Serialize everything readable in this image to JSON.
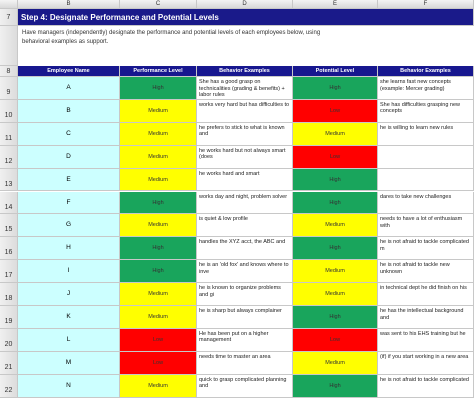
{
  "sheet": {
    "column_letters": [
      "B",
      "C",
      "D",
      "E",
      "F"
    ],
    "title_row": "7",
    "title": "Step 4:  Designate Performance and Potential Levels",
    "instructions": "Have managers (independently) designate the performance and potential levels of each employees below, using behavioral examples as support.",
    "header_row": "8",
    "headers": [
      "Employee Name",
      "Performance Level",
      "Behavior Examples",
      "Potential Level",
      "Behavior Examples"
    ],
    "rows": [
      {
        "row": "9",
        "name": "A",
        "performance": "High",
        "performance_color": "#19a55c",
        "performance_example": "She has a good grasp on technicalities (grading & benefits) + labor rules",
        "potential": "High",
        "potential_color": "#19a55c",
        "potential_example": "she learns fast new concepts (example: Mercer grading)"
      },
      {
        "row": "10",
        "name": "B",
        "performance": "Medium",
        "performance_color": "#ffff00",
        "performance_example": "works very hard but has difficulties to",
        "potential": "Low",
        "potential_color": "#ff0000",
        "potential_example": "She has difficulties grasping new concepts"
      },
      {
        "row": "11",
        "name": "C",
        "performance": "Medium",
        "performance_color": "#ffff00",
        "performance_example": "he prefers to stick to what is known and",
        "potential": "Medium",
        "potential_color": "#ffff00",
        "potential_example": "he is willing to learn new rules"
      },
      {
        "row": "12",
        "name": "D",
        "performance": "Medium",
        "performance_color": "#ffff00",
        "performance_example": "he works hard but not always smart (does",
        "potential": "Low",
        "potential_color": "#ff0000"
      },
      {
        "row": "13",
        "name": "E",
        "performance": "Medium",
        "performance_color": "#ffff00",
        "performance_example": "he works hard and smart",
        "potential": "High",
        "potential_color": "#19a55c"
      },
      {
        "row": "14",
        "name": "F",
        "performance": "High",
        "performance_color": "#19a55c",
        "performance_example": "works day and night, problem solver",
        "potential": "High",
        "potential_color": "#19a55c",
        "potential_example": "dares to take new challenges"
      },
      {
        "row": "15",
        "name": "G",
        "performance": "Medium",
        "performance_color": "#ffff00",
        "performance_example": "is quiet & low profile",
        "potential": "Medium",
        "potential_color": "#ffff00",
        "potential_example": "needs to have a lot of enthusiasm with"
      },
      {
        "row": "16",
        "name": "H",
        "performance": "High",
        "performance_color": "#19a55c",
        "performance_example": "handles the XYZ acct, the ABC and",
        "potential": "High",
        "potential_color": "#19a55c",
        "potential_example": "he is not afraid to tackle complicated m"
      },
      {
        "row": "17",
        "name": "I",
        "performance": "High",
        "performance_color": "#19a55c",
        "performance_example": "he is an 'old fox' and knows where to inve",
        "potential": "Medium",
        "potential_color": "#ffff00",
        "potential_example": "he is not afraid to tackle new unknown"
      },
      {
        "row": "18",
        "name": "J",
        "performance": "Medium",
        "performance_color": "#ffff00",
        "performance_example": "he is known to organize problems and gi",
        "potential": "Medium",
        "potential_color": "#ffff00",
        "potential_example": "in technical dept he did finish on his"
      },
      {
        "row": "19",
        "name": "K",
        "performance": "Medium",
        "performance_color": "#ffff00",
        "performance_example": "he is sharp but always complainer",
        "potential": "High",
        "potential_color": "#19a55c",
        "potential_example": "he has the intellectual background and"
      },
      {
        "row": "20",
        "name": "L",
        "performance": "Low",
        "performance_color": "#ff0000",
        "performance_example": "He has been put on a higher management",
        "potential": "Low",
        "potential_color": "#ff0000",
        "potential_example": "was sent to his EHS training but he"
      },
      {
        "row": "21",
        "name": "M",
        "performance": "Low",
        "performance_color": "#ff0000",
        "performance_example": "needs time to master an area",
        "potential": "Medium",
        "potential_color": "#ffff00",
        "potential_example": "(if) if you start working in a new area"
      },
      {
        "row": "22",
        "name": "N",
        "performance": "Medium",
        "performance_color": "#ffff00",
        "performance_example": "quick to grasp complicated planning and",
        "potential": "High",
        "potential_color": "#19a55c",
        "potential_example": "he is not afraid to tackle complicated"
      }
    ]
  }
}
